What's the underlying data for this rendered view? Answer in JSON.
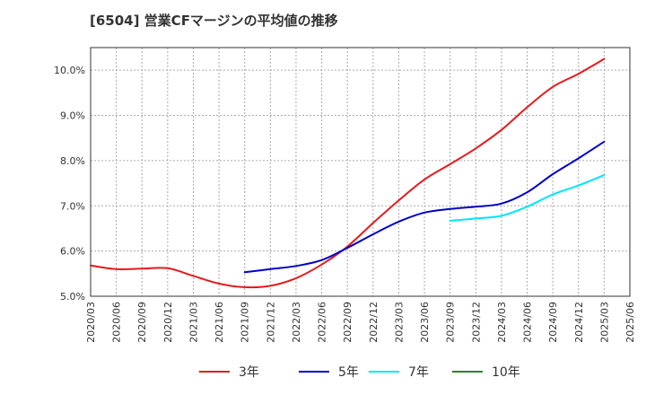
{
  "title": "[6504]  営業CFマージンの平均値の推移",
  "colors": {
    "three_year": "#e41a1c",
    "five_year": "#0000cc",
    "seven_year": "#00e5ff",
    "ten_year": "#228b22",
    "grid": "#aaaaaa",
    "axis": "#333333"
  },
  "chart_data": {
    "type": "line",
    "title": "[6504]  営業CFマージンの平均値の推移",
    "xlabel": "",
    "ylabel": "",
    "x_range": [
      "2020-03",
      "2025-06"
    ],
    "ylim": [
      5.0,
      10.5
    ],
    "y_ticks": [
      "5.0%",
      "6.0%",
      "7.0%",
      "8.0%",
      "9.0%",
      "10.0%"
    ],
    "y_tick_values": [
      5.0,
      6.0,
      7.0,
      8.0,
      9.0,
      10.0
    ],
    "x_ticks": [
      "2020/03",
      "2020/06",
      "2020/09",
      "2020/12",
      "2021/03",
      "2021/06",
      "2021/09",
      "2021/12",
      "2022/03",
      "2022/06",
      "2022/09",
      "2022/12",
      "2023/03",
      "2023/06",
      "2023/09",
      "2023/12",
      "2024/03",
      "2024/06",
      "2024/09",
      "2024/12",
      "2025/03",
      "2025/06"
    ],
    "grid": true,
    "legend_position": "bottom",
    "series": [
      {
        "name": "3年",
        "color_key": "three_year",
        "points": [
          [
            "2020-03",
            5.68
          ],
          [
            "2020-06",
            5.6
          ],
          [
            "2020-09",
            5.61
          ],
          [
            "2020-12",
            5.62
          ],
          [
            "2021-03",
            5.45
          ],
          [
            "2021-06",
            5.28
          ],
          [
            "2021-09",
            5.2
          ],
          [
            "2021-12",
            5.23
          ],
          [
            "2022-03",
            5.4
          ],
          [
            "2022-06",
            5.7
          ],
          [
            "2022-09",
            6.1
          ],
          [
            "2022-12",
            6.62
          ],
          [
            "2023-03",
            7.12
          ],
          [
            "2023-06",
            7.58
          ],
          [
            "2023-09",
            7.92
          ],
          [
            "2023-12",
            8.27
          ],
          [
            "2024-03",
            8.68
          ],
          [
            "2024-06",
            9.18
          ],
          [
            "2024-09",
            9.63
          ],
          [
            "2024-12",
            9.92
          ],
          [
            "2025-03",
            10.25
          ]
        ]
      },
      {
        "name": "5年",
        "color_key": "five_year",
        "points": [
          [
            "2021-09",
            5.53
          ],
          [
            "2021-12",
            5.6
          ],
          [
            "2022-03",
            5.67
          ],
          [
            "2022-06",
            5.8
          ],
          [
            "2022-09",
            6.07
          ],
          [
            "2022-12",
            6.37
          ],
          [
            "2023-03",
            6.65
          ],
          [
            "2023-06",
            6.85
          ],
          [
            "2023-09",
            6.93
          ],
          [
            "2023-12",
            6.98
          ],
          [
            "2024-03",
            7.05
          ],
          [
            "2024-06",
            7.3
          ],
          [
            "2024-09",
            7.7
          ],
          [
            "2024-12",
            8.05
          ],
          [
            "2025-03",
            8.42
          ]
        ]
      },
      {
        "name": "7年",
        "color_key": "seven_year",
        "points": [
          [
            "2023-09",
            6.67
          ],
          [
            "2023-12",
            6.72
          ],
          [
            "2024-03",
            6.78
          ],
          [
            "2024-06",
            6.98
          ],
          [
            "2024-09",
            7.25
          ],
          [
            "2024-12",
            7.45
          ],
          [
            "2025-03",
            7.68
          ]
        ]
      },
      {
        "name": "10年",
        "color_key": "ten_year",
        "points": []
      }
    ]
  }
}
